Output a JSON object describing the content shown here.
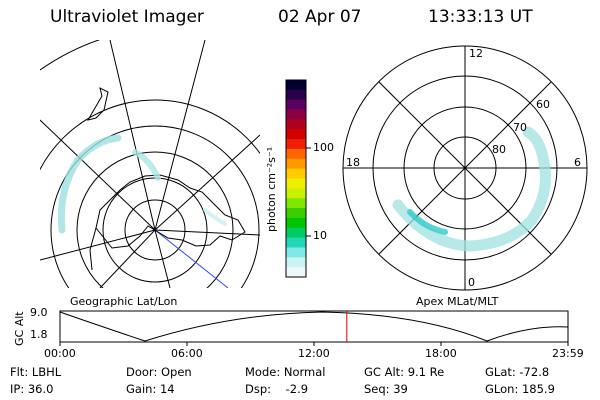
{
  "header": {
    "instrument": "Ultraviolet Imager",
    "date": "02 Apr 07",
    "time": "13:33:13 UT"
  },
  "geo_panel": {
    "label": "Geographic Lat/Lon"
  },
  "polar_panel": {
    "label": "Apex MLat/MLT",
    "mlt_labels": {
      "top": "12",
      "left": "18",
      "right": "6",
      "bottom": "0"
    },
    "lat_labels": [
      "60",
      "70",
      "80"
    ]
  },
  "colorbar": {
    "unit": "photon cm⁻²s⁻¹",
    "ticks": [
      "100",
      "10"
    ],
    "colors": [
      "#000033",
      "#2a004a",
      "#5a0060",
      "#8a0040",
      "#b00020",
      "#d40000",
      "#ee2200",
      "#ff6600",
      "#ff9900",
      "#ffcc00",
      "#f0ee00",
      "#c8f000",
      "#80e800",
      "#3ccf00",
      "#00c400",
      "#00cc66",
      "#20d8b8",
      "#80e8e8",
      "#c8f4f4",
      "#eef8f8"
    ]
  },
  "altitude_plot": {
    "ylabel": "GC Alt",
    "yticks": [
      "9.0",
      "1.8"
    ],
    "xticks": [
      "00:00",
      "06:00",
      "12:00",
      "18:00",
      "23:59"
    ],
    "current_time_hours": 13.55,
    "marker_color": "#dd0000"
  },
  "info": {
    "flt": "Flt: LBHL",
    "ip": "IP: 36.0",
    "door": "Door: Open",
    "gain": "Gain: 14",
    "mode": "Mode: Normal",
    "dsp": "Dsp:    -2.9",
    "gcalt": "GC Alt: 9.1 Re",
    "seq": "Seq: 39",
    "glat": "GLat: -72.8",
    "glon": "GLon: 185.9"
  }
}
